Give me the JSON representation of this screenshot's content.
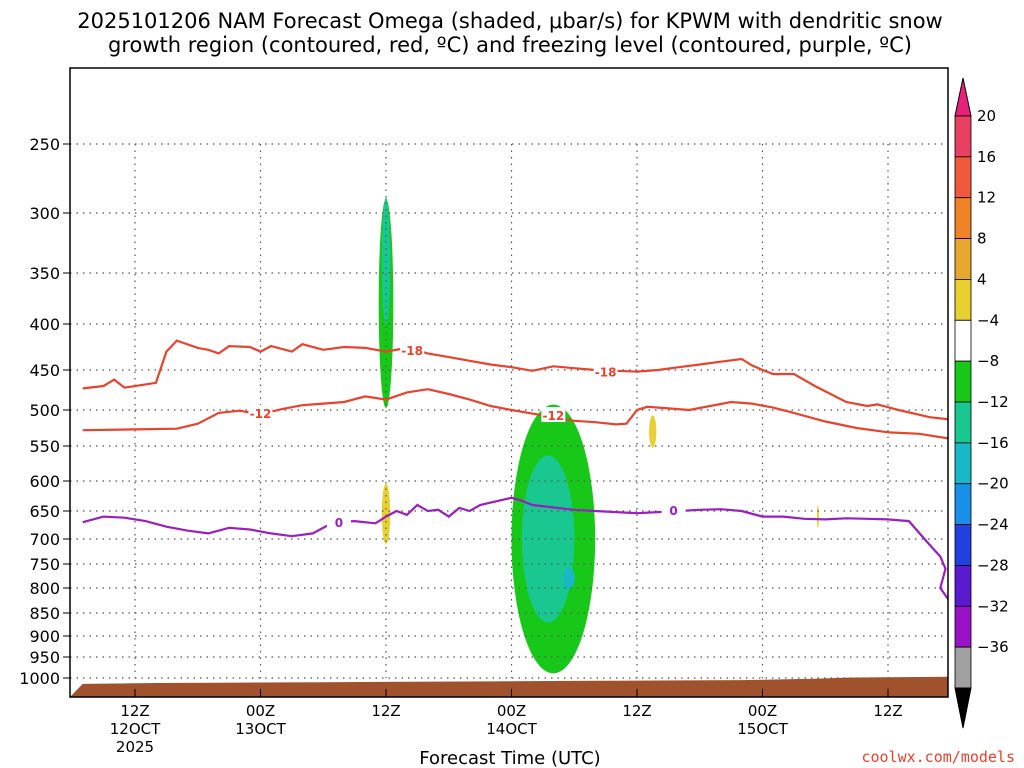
{
  "chart_data": {
    "type": "heatmap",
    "title_line1": "2025101206 NAM Forecast Omega (shaded, μbar/s) for KPWM with dendritic snow",
    "title_line2": "growth region (contoured, red, ºC) and freezing level (contoured, purple, ºC)",
    "xlabel": "Forecast Time (UTC)",
    "ylabel": "",
    "credit": "coolwx.com/models",
    "ylim": [
      1025,
      190
    ],
    "y_ticks": [
      250,
      300,
      350,
      400,
      450,
      500,
      550,
      600,
      650,
      700,
      750,
      800,
      850,
      900,
      950,
      1000
    ],
    "y_tick_labels": [
      "250",
      "300",
      "350",
      "400",
      "450",
      "500",
      "550",
      "600",
      "650",
      "700",
      "750",
      "800",
      "850",
      "900",
      "950",
      "1000"
    ],
    "x_range_hours": [
      7,
      77
    ],
    "x_ticks": [
      {
        "hour": 12,
        "l1": "12Z",
        "l2": "12OCT",
        "l3": "2025"
      },
      {
        "hour": 24,
        "l1": "00Z",
        "l2": "13OCT",
        "l3": ""
      },
      {
        "hour": 36,
        "l1": "12Z",
        "l2": "",
        "l3": ""
      },
      {
        "hour": 48,
        "l1": "00Z",
        "l2": "14OCT",
        "l3": ""
      },
      {
        "hour": 60,
        "l1": "12Z",
        "l2": "",
        "l3": ""
      },
      {
        "hour": 72,
        "l1": "00Z",
        "l2": "15OCT",
        "l3": ""
      },
      {
        "hour": 84,
        "l1": "12Z",
        "l2": "",
        "l3": ""
      }
    ],
    "colorbar": {
      "units": "μbar/s",
      "levels": [
        20,
        16,
        12,
        8,
        4,
        -4,
        -8,
        -12,
        -16,
        -20,
        -24,
        -28,
        -32,
        -36
      ],
      "level_labels": [
        "20",
        "16",
        "12",
        "8",
        "4",
        "−4",
        "−8",
        "−12",
        "−16",
        "−20",
        "−24",
        "−28",
        "−32",
        "−36"
      ],
      "colors": [
        "#e84060",
        "#f05a3a",
        "#f08228",
        "#e8a830",
        "#e8d030",
        "#ffffff",
        "#18c818",
        "#18c890",
        "#18b8c8",
        "#1890e8",
        "#2040e0",
        "#5a1ad0",
        "#9a12c8",
        "#a0a0a0"
      ],
      "top_color": "#e8207a",
      "bottom_color": "#000000"
    },
    "contour_labels": {
      "red_minus18": "-18",
      "red_minus12": "-12",
      "purple_zero": "0"
    },
    "series": [
      {
        "name": "-18C isotherm",
        "color": "#e8432d",
        "points": [
          [
            7,
            473
          ],
          [
            9,
            470
          ],
          [
            10,
            462
          ],
          [
            11,
            472
          ],
          [
            13,
            468
          ],
          [
            14,
            466
          ],
          [
            15,
            430
          ],
          [
            16,
            418
          ],
          [
            18,
            426
          ],
          [
            19,
            428
          ],
          [
            20,
            432
          ],
          [
            21,
            424
          ],
          [
            23,
            425
          ],
          [
            24,
            430
          ],
          [
            25,
            424
          ],
          [
            27,
            430
          ],
          [
            28,
            422
          ],
          [
            30,
            428
          ],
          [
            32,
            425
          ],
          [
            34,
            426
          ],
          [
            36,
            430
          ],
          [
            38,
            426
          ],
          [
            40,
            432
          ],
          [
            42,
            436
          ],
          [
            44,
            440
          ],
          [
            46,
            444
          ],
          [
            48,
            447
          ],
          [
            50,
            451
          ],
          [
            52,
            446
          ],
          [
            54,
            448
          ],
          [
            56,
            450
          ],
          [
            58,
            451
          ],
          [
            60,
            452
          ],
          [
            62,
            450
          ],
          [
            64,
            447
          ],
          [
            66,
            444
          ],
          [
            68,
            441
          ],
          [
            70,
            438
          ],
          [
            71,
            445
          ],
          [
            72,
            450
          ],
          [
            73,
            455
          ],
          [
            75,
            455
          ],
          [
            77,
            470
          ],
          [
            80,
            490
          ],
          [
            82,
            495
          ],
          [
            83,
            493
          ],
          [
            85,
            500
          ],
          [
            88,
            510
          ],
          [
            91,
            515
          ]
        ]
      },
      {
        "name": "-12C isotherm",
        "color": "#e8432d",
        "points": [
          [
            7,
            528
          ],
          [
            12,
            527
          ],
          [
            16,
            526
          ],
          [
            18,
            519
          ],
          [
            20,
            504
          ],
          [
            22,
            501
          ],
          [
            24,
            506
          ],
          [
            26,
            499
          ],
          [
            28,
            494
          ],
          [
            30,
            492
          ],
          [
            32,
            490
          ],
          [
            34,
            483
          ],
          [
            36,
            487
          ],
          [
            38,
            478
          ],
          [
            40,
            474
          ],
          [
            42,
            480
          ],
          [
            44,
            487
          ],
          [
            46,
            495
          ],
          [
            48,
            500
          ],
          [
            50,
            505
          ],
          [
            52,
            510
          ],
          [
            54,
            515
          ],
          [
            56,
            517
          ],
          [
            58,
            520
          ],
          [
            59,
            519
          ],
          [
            60,
            500
          ],
          [
            61,
            496
          ],
          [
            63,
            498
          ],
          [
            65,
            500
          ],
          [
            67,
            495
          ],
          [
            69,
            490
          ],
          [
            71,
            492
          ],
          [
            73,
            497
          ],
          [
            75,
            504
          ],
          [
            78,
            516
          ],
          [
            81,
            525
          ],
          [
            84,
            531
          ],
          [
            87,
            533
          ],
          [
            90,
            540
          ],
          [
            91,
            542
          ]
        ]
      },
      {
        "name": "0C freezing level",
        "color": "#9b1fbf",
        "points": [
          [
            7,
            670
          ],
          [
            9,
            660
          ],
          [
            11,
            662
          ],
          [
            13,
            668
          ],
          [
            15,
            678
          ],
          [
            17,
            685
          ],
          [
            19,
            690
          ],
          [
            21,
            680
          ],
          [
            23,
            683
          ],
          [
            25,
            690
          ],
          [
            27,
            695
          ],
          [
            29,
            690
          ],
          [
            31,
            670
          ],
          [
            33,
            668
          ],
          [
            35,
            672
          ],
          [
            36,
            660
          ],
          [
            37,
            650
          ],
          [
            38,
            657
          ],
          [
            39,
            640
          ],
          [
            40,
            650
          ],
          [
            41,
            648
          ],
          [
            42,
            660
          ],
          [
            43,
            645
          ],
          [
            44,
            650
          ],
          [
            45,
            640
          ],
          [
            47,
            632
          ],
          [
            48,
            628
          ],
          [
            49,
            633
          ],
          [
            50,
            640
          ],
          [
            52,
            644
          ],
          [
            54,
            648
          ],
          [
            56,
            650
          ],
          [
            58,
            652
          ],
          [
            60,
            654
          ],
          [
            62,
            652
          ],
          [
            64,
            650
          ],
          [
            66,
            648
          ],
          [
            68,
            647
          ],
          [
            70,
            650
          ],
          [
            72,
            660
          ],
          [
            74,
            660
          ],
          [
            76,
            664
          ],
          [
            78,
            665
          ],
          [
            80,
            663
          ],
          [
            82,
            664
          ],
          [
            84,
            665
          ],
          [
            86,
            668
          ],
          [
            88,
            712
          ],
          [
            89,
            735
          ],
          [
            89.5,
            760
          ],
          [
            89,
            800
          ],
          [
            90,
            830
          ],
          [
            91,
            850
          ]
        ]
      }
    ],
    "shaded_regions": [
      {
        "name": "ascent near 12Z 12OCT upper",
        "value": -4,
        "center": [
          10.8,
          380
        ],
        "width_h": 0.8,
        "height_mb": 115
      },
      {
        "name": "ascent near 00Z 13OCT",
        "value": -4,
        "center": [
          24.8,
          575
        ],
        "width_h": 0.7,
        "height_mb": 40
      },
      {
        "name": "ascent aloft 12Z 13OCT",
        "value": -8,
        "center": [
          36.0,
          380
        ],
        "width_h": 1.4,
        "height_mb": 200
      },
      {
        "name": "strong ascent 12Z 13OCT",
        "value": -12,
        "center": [
          36.0,
          340
        ],
        "width_h": 0.8,
        "height_mb": 110
      },
      {
        "name": "ascent column 13OCT",
        "value": -4,
        "center": [
          40.3,
          470
        ],
        "width_h": 0.6,
        "height_mb": 110
      },
      {
        "name": "low level ascent 13OCT",
        "value": -4,
        "center": [
          29.5,
          680
        ],
        "width_h": 0.7,
        "height_mb": 30
      },
      {
        "name": "low level ascent 13OCT B",
        "value": -4,
        "center": [
          43.5,
          740
        ],
        "width_h": 0.9,
        "height_mb": 35
      },
      {
        "name": "boundary layer ascent 12OCT",
        "value": -4,
        "center": [
          18.5,
          930
        ],
        "width_h": 3.2,
        "height_mb": 55
      },
      {
        "name": "boundary layer ascent 13OCT",
        "value": -4,
        "center": [
          30.5,
          935
        ],
        "width_h": 4.5,
        "height_mb": 30
      },
      {
        "name": "main ascent 14OCT",
        "value": -8,
        "center": [
          52.0,
          700
        ],
        "width_h": 8.0,
        "height_mb": 470
      },
      {
        "name": "main ascent core 14OCT",
        "value": -12,
        "center": [
          51.5,
          700
        ],
        "width_h": 5.0,
        "height_mb": 300
      },
      {
        "name": "main ascent max 14OCT",
        "value": -16,
        "center": [
          53.5,
          780
        ],
        "width_h": 1.1,
        "height_mb": 45
      },
      {
        "name": "ascent 14OCT small",
        "value": -4,
        "center": [
          67.5,
          895
        ],
        "width_h": 1.2,
        "height_mb": 12
      },
      {
        "name": "descent 12Z 13OCT",
        "value": 4,
        "center": [
          36.0,
          655
        ],
        "width_h": 0.8,
        "height_mb": 105
      },
      {
        "name": "descent 14OCT",
        "value": 4,
        "center": [
          61.5,
          530
        ],
        "width_h": 0.7,
        "height_mb": 45
      },
      {
        "name": "descent 15OCT",
        "value": 4,
        "center": [
          77.3,
          660
        ],
        "width_h": 0.2,
        "height_mb": 40
      }
    ],
    "terrain_color": "#a0522d"
  }
}
